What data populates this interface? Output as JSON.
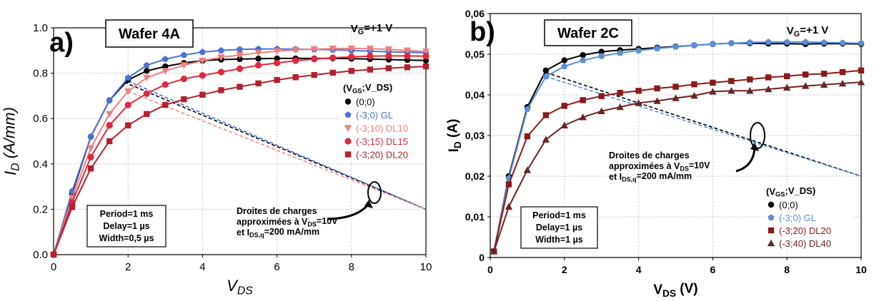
{
  "chart_data": [
    {
      "type": "line",
      "panel_label": "a)",
      "title": "Wafer 4A",
      "condition": "V_G=+1 V",
      "xlabel": "V_DS",
      "ylabel": "I_D (A/mm)",
      "xlim": [
        0,
        10
      ],
      "ylim": [
        0,
        1.0
      ],
      "xticks": [
        0,
        2,
        4,
        6,
        8,
        10
      ],
      "yticks": [
        0.0,
        0.2,
        0.4,
        0.6,
        0.8,
        1.0
      ],
      "ytick_labels": [
        "0.0",
        "0.2",
        "0.4",
        "0.6",
        "0.8",
        "1.0"
      ],
      "grid": true,
      "legend_title": "(V_GS;V_DS)",
      "legend_position": "right",
      "series": [
        {
          "name": "(0;0)",
          "color": "#000000",
          "marker": "circle",
          "x": [
            0,
            0.5,
            1,
            1.5,
            2,
            2.5,
            3,
            3.5,
            4,
            4.5,
            5,
            5.5,
            6,
            6.5,
            7,
            7.5,
            8,
            8.5,
            9,
            9.5,
            10
          ],
          "y": [
            0,
            0.27,
            0.52,
            0.68,
            0.77,
            0.81,
            0.83,
            0.845,
            0.855,
            0.86,
            0.862,
            0.864,
            0.865,
            0.865,
            0.865,
            0.865,
            0.864,
            0.862,
            0.86,
            0.858,
            0.856
          ]
        },
        {
          "name": "(-3;0) GL",
          "color": "#4a72d6",
          "marker": "pentagon",
          "x": [
            0,
            0.5,
            1,
            1.5,
            2,
            2.5,
            3,
            3.5,
            4,
            4.5,
            5,
            5.5,
            6,
            6.5,
            7,
            7.5,
            8,
            8.5,
            9,
            9.5,
            10
          ],
          "y": [
            0,
            0.28,
            0.52,
            0.68,
            0.78,
            0.835,
            0.862,
            0.88,
            0.893,
            0.9,
            0.905,
            0.907,
            0.907,
            0.906,
            0.905,
            0.903,
            0.9,
            0.897,
            0.894,
            0.892,
            0.89
          ]
        },
        {
          "name": "(-3;10) DL10",
          "color": "#ee7f7f",
          "marker": "triangle-down",
          "x": [
            0,
            0.5,
            1,
            1.5,
            2,
            2.5,
            3,
            3.5,
            4,
            4.5,
            5,
            5.5,
            6,
            6.5,
            7,
            7.5,
            8,
            8.5,
            9,
            9.5,
            10
          ],
          "y": [
            0,
            0.25,
            0.47,
            0.62,
            0.72,
            0.78,
            0.81,
            0.835,
            0.855,
            0.87,
            0.88,
            0.89,
            0.897,
            0.903,
            0.906,
            0.908,
            0.909,
            0.908,
            0.905,
            0.9,
            0.895
          ]
        },
        {
          "name": "(-3;15) DL15",
          "color": "#e0283f",
          "marker": "octagon",
          "x": [
            0,
            0.5,
            1,
            1.5,
            2,
            2.5,
            3,
            3.5,
            4,
            4.5,
            5,
            5.5,
            6,
            6.5,
            7,
            7.5,
            8,
            8.5,
            9,
            9.5,
            10
          ],
          "y": [
            0,
            0.23,
            0.43,
            0.57,
            0.66,
            0.71,
            0.75,
            0.775,
            0.79,
            0.805,
            0.82,
            0.835,
            0.845,
            0.855,
            0.862,
            0.868,
            0.872,
            0.875,
            0.876,
            0.876,
            0.875
          ]
        },
        {
          "name": "(-3;20) DL20",
          "color": "#b5202e",
          "marker": "square",
          "x": [
            0,
            0.5,
            1,
            1.5,
            2,
            2.5,
            3,
            3.5,
            4,
            4.5,
            5,
            5.5,
            6,
            6.5,
            7,
            7.5,
            8,
            8.5,
            9,
            9.5,
            10
          ],
          "y": [
            0,
            0.21,
            0.38,
            0.5,
            0.57,
            0.62,
            0.66,
            0.685,
            0.705,
            0.725,
            0.74,
            0.755,
            0.77,
            0.782,
            0.792,
            0.802,
            0.81,
            0.816,
            0.822,
            0.826,
            0.83
          ]
        }
      ],
      "load_lines": [
        {
          "color": "#000000",
          "x": [
            1.9,
            10
          ],
          "y": [
            0.76,
            0.2
          ]
        },
        {
          "color": "#4a72d6",
          "x": [
            2.0,
            10
          ],
          "y": [
            0.765,
            0.2
          ]
        },
        {
          "color": "#f08a8a",
          "x": [
            2.0,
            10
          ],
          "y": [
            0.72,
            0.2
          ]
        }
      ],
      "annotation_lines": [
        "Droites de charges",
        "approximées à  V_DS=10V",
        "et I_DS,q=200 mA/mm"
      ],
      "pulse_box": [
        "Period=1 ms",
        "Delay=1 µs",
        "Width=0,5 µs"
      ]
    },
    {
      "type": "line",
      "panel_label": "b)",
      "title": "Wafer 2C",
      "condition": "V_G=+1 V",
      "xlabel": "V_DS (V)",
      "ylabel": "I_D (A)",
      "xlim": [
        0,
        10
      ],
      "ylim": [
        0,
        0.06
      ],
      "xticks": [
        0,
        2,
        4,
        6,
        8,
        10
      ],
      "yticks": [
        0,
        0.01,
        0.02,
        0.03,
        0.04,
        0.05,
        0.06
      ],
      "ytick_labels": [
        "0",
        "0,01",
        "0,02",
        "0,03",
        "0,04",
        "0,05",
        "0,06"
      ],
      "grid": true,
      "legend_title": "(V_GS;V_DS)",
      "legend_position": "bottom-right",
      "series": [
        {
          "name": "(0;0)",
          "color": "#000000",
          "marker": "circle",
          "x": [
            0.1,
            0.5,
            1,
            1.5,
            2,
            2.5,
            3,
            3.5,
            4,
            4.5,
            5,
            5.5,
            6,
            6.5,
            7,
            7.5,
            8,
            8.5,
            9,
            9.5,
            10
          ],
          "y": [
            0.0015,
            0.02,
            0.037,
            0.046,
            0.0485,
            0.0498,
            0.0506,
            0.051,
            0.0513,
            0.0516,
            0.0519,
            0.0522,
            0.0525,
            0.0527,
            0.0527,
            0.0526,
            0.0526,
            0.0525,
            0.0526,
            0.0526,
            0.0525
          ]
        },
        {
          "name": "(-3;0) GL",
          "color": "#5a8fd6",
          "marker": "pentagon",
          "x": [
            0.1,
            0.5,
            1,
            1.5,
            2,
            2.5,
            3,
            3.5,
            4,
            4.5,
            5,
            5.5,
            6,
            6.5,
            7,
            7.5,
            8,
            8.5,
            9,
            9.5,
            10
          ],
          "y": [
            0.0015,
            0.0195,
            0.0365,
            0.0445,
            0.047,
            0.0485,
            0.0495,
            0.0503,
            0.0509,
            0.0514,
            0.0518,
            0.0522,
            0.0525,
            0.0527,
            0.0529,
            0.053,
            0.053,
            0.053,
            0.0529,
            0.0528,
            0.0527
          ]
        },
        {
          "name": "(-3;20) DL20",
          "color": "#8b1a1a",
          "marker": "square",
          "x": [
            0.1,
            0.5,
            1,
            1.5,
            2,
            2.5,
            3,
            3.5,
            4,
            4.5,
            5,
            5.5,
            6,
            6.5,
            7,
            7.5,
            8,
            8.5,
            9,
            9.5,
            10
          ],
          "y": [
            0.0015,
            0.018,
            0.0298,
            0.035,
            0.0373,
            0.0387,
            0.0397,
            0.0405,
            0.041,
            0.0416,
            0.042,
            0.0426,
            0.043,
            0.0434,
            0.0438,
            0.0443,
            0.0446,
            0.045,
            0.0452,
            0.0456,
            0.046
          ]
        },
        {
          "name": "(-3;40) DL40",
          "color": "#6b2424",
          "marker": "triangle",
          "x": [
            0.1,
            0.5,
            1,
            1.5,
            2,
            2.5,
            3,
            3.5,
            4,
            4.5,
            5,
            5.5,
            6,
            6.5,
            7,
            7.5,
            8,
            8.5,
            9,
            9.5,
            10
          ],
          "y": [
            0.0015,
            0.0125,
            0.0215,
            0.029,
            0.0325,
            0.0345,
            0.036,
            0.037,
            0.038,
            0.0385,
            0.0392,
            0.0398,
            0.0408,
            0.041,
            0.041,
            0.0414,
            0.0418,
            0.0422,
            0.0425,
            0.0428,
            0.0431
          ]
        }
      ],
      "load_lines": [
        {
          "color": "#000000",
          "x": [
            1.5,
            10
          ],
          "y": [
            0.0455,
            0.02
          ]
        },
        {
          "color": "#5a8fd6",
          "x": [
            1.5,
            10
          ],
          "y": [
            0.0445,
            0.02
          ]
        }
      ],
      "annotation_lines": [
        "Droites de charges",
        "approximées à  V_DS=10V",
        "et I_DS,q=200 mA/mm"
      ],
      "pulse_box": [
        "Period=1 ms",
        "Delay=1 µs",
        "Width=1 µs"
      ]
    }
  ]
}
